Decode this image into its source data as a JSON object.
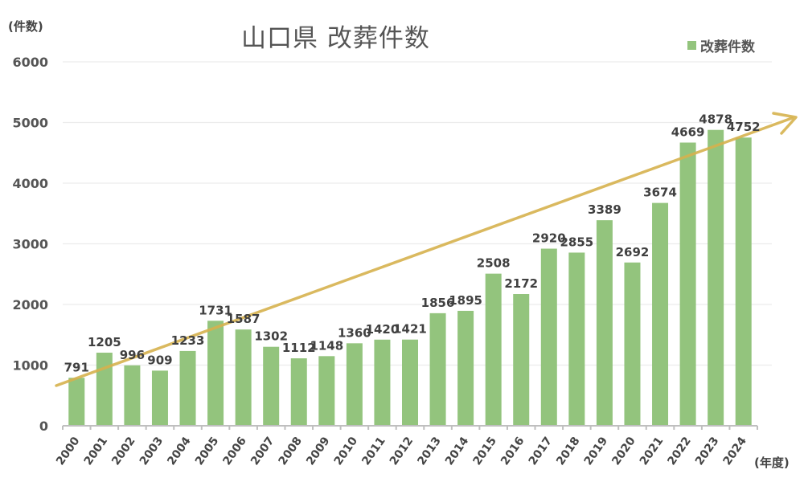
{
  "header": {
    "title": "山口県 改葬件数",
    "y_unit": "(件数)",
    "x_unit": "(年度)"
  },
  "legend": {
    "items": [
      {
        "label": "改葬件数",
        "color": "#93c47d"
      }
    ]
  },
  "colors": {
    "bar": "#93c47d",
    "trend_arrow": "#d6b24e",
    "gridline": "#ececec",
    "axis": "#bfbfbf",
    "label_text": "#404040"
  },
  "chart_data": {
    "type": "bar",
    "title": "山口県 改葬件数",
    "xlabel": "(年度)",
    "ylabel": "(件数)",
    "ylim": [
      0,
      6000
    ],
    "yticks": [
      0,
      1000,
      2000,
      3000,
      4000,
      5000,
      6000
    ],
    "grid": true,
    "legend_position": "top-right",
    "categories": [
      "2000",
      "2001",
      "2002",
      "2003",
      "2004",
      "2005",
      "2006",
      "2007",
      "2008",
      "2009",
      "2010",
      "2011",
      "2012",
      "2013",
      "2014",
      "2015",
      "2016",
      "2017",
      "2018",
      "2019",
      "2020",
      "2021",
      "2022",
      "2023",
      "2024"
    ],
    "series": [
      {
        "name": "改葬件数",
        "values": [
          791,
          1205,
          996,
          909,
          1233,
          1731,
          1587,
          1302,
          1112,
          1148,
          1360,
          1420,
          1421,
          1856,
          1895,
          2508,
          2172,
          2920,
          2855,
          3389,
          2692,
          3674,
          4669,
          4878,
          4752
        ]
      }
    ],
    "annotations": [
      {
        "type": "trend-arrow",
        "description": "upward trend arrow from lower-left to upper-right"
      }
    ]
  }
}
